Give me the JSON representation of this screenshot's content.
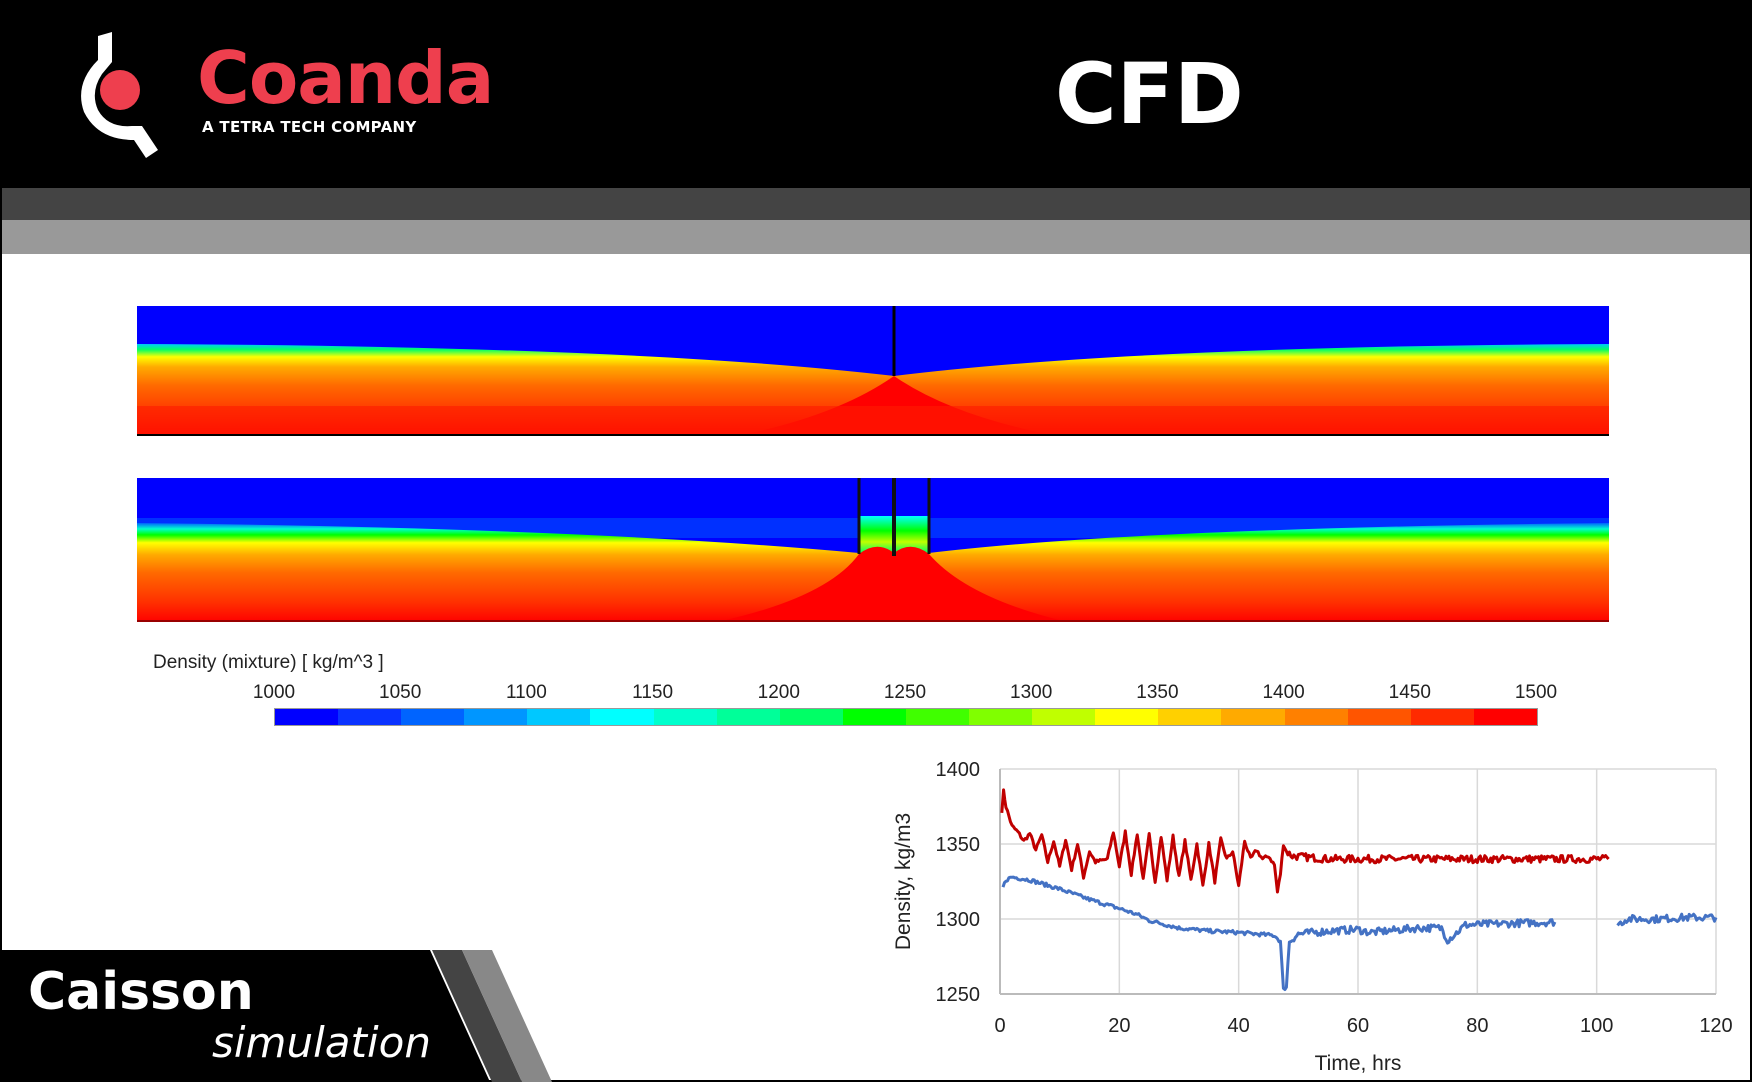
{
  "header": {
    "brand_name": "Coanda",
    "brand_tagline": "A TETRA TECH COMPANY",
    "title": "CFD",
    "brand_color": "#ee3f4e"
  },
  "colorbar": {
    "title": "Density (mixture)  [ kg/m^3 ]",
    "ticks": [
      "1000",
      "1050",
      "1100",
      "1150",
      "1200",
      "1250",
      "1300",
      "1350",
      "1400",
      "1450",
      "1500"
    ],
    "colors": [
      "#0000ff",
      "#0a32ff",
      "#0064ff",
      "#0096ff",
      "#00c8ff",
      "#00ffff",
      "#00ffcc",
      "#00ff99",
      "#00ff66",
      "#00ff00",
      "#40ff00",
      "#80ff00",
      "#c0ff00",
      "#ffff00",
      "#ffd000",
      "#ffaa00",
      "#ff8000",
      "#ff5500",
      "#ff2a00",
      "#ff0000"
    ]
  },
  "footer": {
    "title": "Caisson",
    "subtitle": "simulation"
  },
  "chart_data": {
    "type": "line",
    "xlabel": "Time, hrs",
    "ylabel": "Density, kg/m3",
    "xlim": [
      0,
      120
    ],
    "ylim": [
      1250,
      1400
    ],
    "xticks": [
      "0",
      "20",
      "40",
      "60",
      "80",
      "100",
      "120"
    ],
    "yticks": [
      "1250",
      "1300",
      "1350",
      "1400"
    ],
    "grid": true,
    "series": [
      {
        "color": "#c00000",
        "segments": [
          [
            [
              0.3,
              1372
            ],
            [
              0.6,
              1385
            ],
            [
              1,
              1375
            ],
            [
              2,
              1362
            ],
            [
              3,
              1358
            ],
            [
              4,
              1352
            ],
            [
              5,
              1357
            ],
            [
              6,
              1346
            ],
            [
              7,
              1356
            ],
            [
              8,
              1338
            ],
            [
              9,
              1352
            ],
            [
              10,
              1335
            ],
            [
              11,
              1353
            ],
            [
              12,
              1333
            ],
            [
              13,
              1350
            ],
            [
              14,
              1328
            ],
            [
              15,
              1345
            ],
            [
              16,
              1338
            ],
            [
              18,
              1340
            ],
            [
              19,
              1358
            ],
            [
              20,
              1335
            ],
            [
              21,
              1358
            ],
            [
              22,
              1330
            ],
            [
              23,
              1357
            ],
            [
              24,
              1326
            ],
            [
              25,
              1356
            ],
            [
              26,
              1325
            ],
            [
              27,
              1355
            ],
            [
              28,
              1326
            ],
            [
              29,
              1355
            ],
            [
              30,
              1328
            ],
            [
              31,
              1352
            ],
            [
              32,
              1326
            ],
            [
              33,
              1350
            ],
            [
              34,
              1322
            ],
            [
              35,
              1350
            ],
            [
              36,
              1325
            ],
            [
              37,
              1353
            ],
            [
              38,
              1340
            ],
            [
              39,
              1345
            ],
            [
              40,
              1322
            ],
            [
              41,
              1352
            ],
            [
              42,
              1340
            ],
            [
              43,
              1346
            ],
            [
              44,
              1340
            ],
            [
              45,
              1342
            ],
            [
              46,
              1336
            ],
            [
              46.5,
              1318
            ],
            [
              47,
              1330
            ],
            [
              47.5,
              1350
            ],
            [
              48,
              1345
            ],
            [
              49,
              1342
            ],
            [
              55,
              1340
            ],
            [
              60,
              1340
            ],
            [
              70,
              1340
            ],
            [
              80,
              1340
            ],
            [
              90,
              1340
            ],
            [
              102,
              1340
            ]
          ]
        ]
      },
      {
        "color": "#4472c4",
        "segments": [
          [
            [
              0.5,
              1321
            ],
            [
              1,
              1326
            ],
            [
              2,
              1328
            ],
            [
              5,
              1326
            ],
            [
              10,
              1320
            ],
            [
              15,
              1313
            ],
            [
              20,
              1307
            ],
            [
              23,
              1303
            ],
            [
              25,
              1299
            ],
            [
              30,
              1294
            ],
            [
              35,
              1292
            ],
            [
              40,
              1291
            ],
            [
              46,
              1289
            ],
            [
              47,
              1285
            ],
            [
              47.5,
              1253
            ],
            [
              48,
              1255
            ],
            [
              48.5,
              1285
            ],
            [
              50,
              1290
            ],
            [
              55,
              1292
            ],
            [
              60,
              1293
            ],
            [
              62,
              1291
            ],
            [
              70,
              1294
            ],
            [
              74,
              1294
            ],
            [
              75,
              1286
            ],
            [
              76,
              1289
            ],
            [
              78,
              1296
            ],
            [
              85,
              1297
            ],
            [
              93,
              1298
            ]
          ],
          [
            [
              103.5,
              1296
            ],
            [
              105,
              1300
            ],
            [
              110,
              1300
            ],
            [
              115,
              1301
            ],
            [
              120,
              1301
            ]
          ]
        ]
      }
    ]
  }
}
